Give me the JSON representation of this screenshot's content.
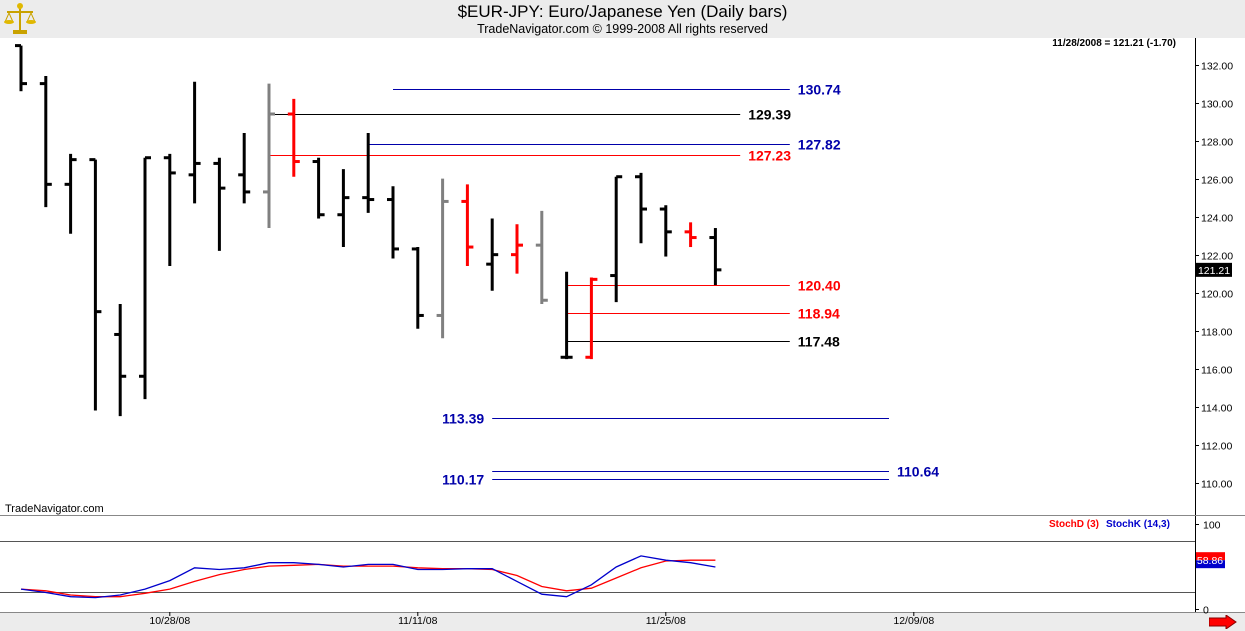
{
  "header": {
    "title": "$EUR-JPY:  Euro/Japanese Yen  (Daily bars)",
    "subtitle": "TradeNavigator.com © 1999-2008 All rights reserved"
  },
  "icons": {
    "logo": "scales-logo-icon",
    "scroll": "right-arrow-icon"
  },
  "colors": {
    "up_bar": "#000000",
    "down_bar": "#ff0000",
    "neutral_bar": "#808080",
    "blue_level": "#0000aa",
    "stoch_d": "#ff0000",
    "stoch_k": "#0000cc"
  },
  "chart_data": [
    {
      "type": "ohlc",
      "last_quote": "11/28/2008 = 121.21 (-1.70)",
      "last_price_label": "121.21",
      "watermark": "TradeNavigator.com",
      "ylim": [
        108.3,
        133.4
      ],
      "yticks": [
        110,
        112,
        114,
        116,
        118,
        120,
        122,
        124,
        126,
        128,
        130,
        132
      ],
      "ytick_labels": [
        "110.00",
        "112.00",
        "114.00",
        "116.00",
        "118.00",
        "120.00",
        "122.00",
        "124.00",
        "126.00",
        "128.00",
        "130.00",
        "132.00"
      ],
      "xticks": [
        {
          "label": "10/28/08",
          "slot": 6
        },
        {
          "label": "11/11/08",
          "slot": 16
        },
        {
          "label": "11/25/08",
          "slot": 26
        },
        {
          "label": "12/09/08",
          "slot": 36
        }
      ],
      "bars": [
        {
          "slot": 0,
          "o": 133.0,
          "h": 133.0,
          "l": 130.6,
          "c": 131.0,
          "color": "up"
        },
        {
          "slot": 1,
          "o": 131.0,
          "h": 131.4,
          "l": 124.5,
          "c": 125.7,
          "color": "up"
        },
        {
          "slot": 2,
          "o": 125.7,
          "h": 127.3,
          "l": 123.1,
          "c": 127.0,
          "color": "up"
        },
        {
          "slot": 3,
          "o": 127.0,
          "h": 127.0,
          "l": 113.8,
          "c": 119.0,
          "color": "up"
        },
        {
          "slot": 4,
          "o": 117.8,
          "h": 119.4,
          "l": 113.5,
          "c": 115.6,
          "color": "up"
        },
        {
          "slot": 5,
          "o": 115.6,
          "h": 127.1,
          "l": 114.4,
          "c": 127.1,
          "color": "up"
        },
        {
          "slot": 6,
          "o": 127.1,
          "h": 127.3,
          "l": 121.4,
          "c": 126.3,
          "color": "up"
        },
        {
          "slot": 7,
          "o": 126.2,
          "h": 131.1,
          "l": 124.7,
          "c": 126.8,
          "color": "up"
        },
        {
          "slot": 8,
          "o": 126.8,
          "h": 127.1,
          "l": 122.2,
          "c": 125.5,
          "color": "up"
        },
        {
          "slot": 9,
          "o": 126.2,
          "h": 128.4,
          "l": 124.7,
          "c": 125.3,
          "color": "up"
        },
        {
          "slot": 10,
          "o": 125.3,
          "h": 131.0,
          "l": 123.4,
          "c": 129.4,
          "color": "neutral"
        },
        {
          "slot": 11,
          "o": 129.4,
          "h": 130.2,
          "l": 126.1,
          "c": 126.9,
          "color": "down"
        },
        {
          "slot": 12,
          "o": 126.9,
          "h": 127.1,
          "l": 123.9,
          "c": 124.1,
          "color": "up"
        },
        {
          "slot": 13,
          "o": 124.1,
          "h": 126.5,
          "l": 122.4,
          "c": 125.0,
          "color": "up"
        },
        {
          "slot": 14,
          "o": 125.0,
          "h": 128.4,
          "l": 124.2,
          "c": 124.9,
          "color": "up"
        },
        {
          "slot": 15,
          "o": 124.9,
          "h": 125.6,
          "l": 121.8,
          "c": 122.3,
          "color": "up"
        },
        {
          "slot": 16,
          "o": 122.3,
          "h": 122.4,
          "l": 118.1,
          "c": 118.8,
          "color": "up"
        },
        {
          "slot": 17,
          "o": 118.8,
          "h": 126.0,
          "l": 117.6,
          "c": 124.8,
          "color": "neutral"
        },
        {
          "slot": 18,
          "o": 124.8,
          "h": 125.7,
          "l": 121.4,
          "c": 122.4,
          "color": "down"
        },
        {
          "slot": 19,
          "o": 121.5,
          "h": 123.9,
          "l": 120.1,
          "c": 122.0,
          "color": "up"
        },
        {
          "slot": 20,
          "o": 122.0,
          "h": 123.6,
          "l": 121.0,
          "c": 122.5,
          "color": "down"
        },
        {
          "slot": 21,
          "o": 122.5,
          "h": 124.3,
          "l": 119.4,
          "c": 119.6,
          "color": "neutral"
        },
        {
          "slot": 22,
          "o": 116.6,
          "h": 121.1,
          "l": 116.5,
          "c": 116.6,
          "color": "up"
        },
        {
          "slot": 23,
          "o": 116.6,
          "h": 120.8,
          "l": 116.5,
          "c": 120.7,
          "color": "down"
        },
        {
          "slot": 24,
          "o": 120.9,
          "h": 126.1,
          "l": 119.5,
          "c": 126.1,
          "color": "up"
        },
        {
          "slot": 25,
          "o": 126.1,
          "h": 126.3,
          "l": 122.6,
          "c": 124.4,
          "color": "up"
        },
        {
          "slot": 26,
          "o": 124.4,
          "h": 124.6,
          "l": 121.9,
          "c": 123.2,
          "color": "up"
        },
        {
          "slot": 27,
          "o": 123.2,
          "h": 123.7,
          "l": 122.4,
          "c": 122.9,
          "color": "down"
        },
        {
          "slot": 28,
          "o": 122.9,
          "h": 123.4,
          "l": 120.4,
          "c": 121.2,
          "color": "up"
        }
      ],
      "levels": [
        {
          "value": 130.74,
          "label": "130.74",
          "color": "blue",
          "from": 15,
          "to": 31,
          "label_side": "right"
        },
        {
          "value": 129.39,
          "label": "129.39",
          "color": "black",
          "from": 10,
          "to": 29,
          "label_side": "right"
        },
        {
          "value": 127.82,
          "label": "127.82",
          "color": "blue",
          "from": 14,
          "to": 31,
          "label_side": "right"
        },
        {
          "value": 127.23,
          "label": "127.23",
          "color": "red",
          "from": 10,
          "to": 29,
          "label_side": "right"
        },
        {
          "value": 120.4,
          "label": "120.40",
          "color": "red",
          "from": 22,
          "to": 31,
          "label_side": "right"
        },
        {
          "value": 118.94,
          "label": "118.94",
          "color": "red",
          "from": 22,
          "to": 31,
          "label_side": "right"
        },
        {
          "value": 117.48,
          "label": "117.48",
          "color": "black",
          "from": 22,
          "to": 31,
          "label_side": "right"
        },
        {
          "value": 113.39,
          "label": "113.39",
          "color": "blue",
          "from": 19,
          "to": 35,
          "label_side": "left"
        },
        {
          "value": 110.64,
          "label": "110.64",
          "color": "blue",
          "from": 19,
          "to": 35,
          "label_side": "right"
        },
        {
          "value": 110.17,
          "label": "110.17",
          "color": "blue",
          "from": 19,
          "to": 35,
          "label_side": "left"
        }
      ]
    },
    {
      "type": "line",
      "legend": [
        {
          "name": "StochD (3)",
          "color": "red"
        },
        {
          "name": "StochK (14,3)",
          "color": "blue"
        }
      ],
      "last_value_label": "58.86",
      "ylim": [
        -3,
        110
      ],
      "yticks": [
        0,
        100
      ],
      "ytick_labels": [
        "0",
        "100"
      ],
      "guides": [
        20,
        80
      ],
      "series": [
        {
          "name": "StochD (3)",
          "color": "red",
          "values": [
            24,
            22,
            17,
            15,
            15,
            19,
            24,
            33,
            41,
            47,
            51,
            52,
            53,
            51,
            51,
            51,
            49,
            48,
            48,
            47,
            40,
            27,
            22,
            25,
            37,
            49,
            57,
            58,
            58
          ]
        },
        {
          "name": "StochK (14,3)",
          "color": "blue",
          "values": [
            24,
            20,
            15,
            14,
            17,
            24,
            34,
            49,
            47,
            49,
            55,
            55,
            53,
            50,
            53,
            53,
            47,
            47,
            48,
            48,
            33,
            18,
            15,
            29,
            50,
            63,
            58,
            55,
            50
          ]
        }
      ]
    }
  ]
}
